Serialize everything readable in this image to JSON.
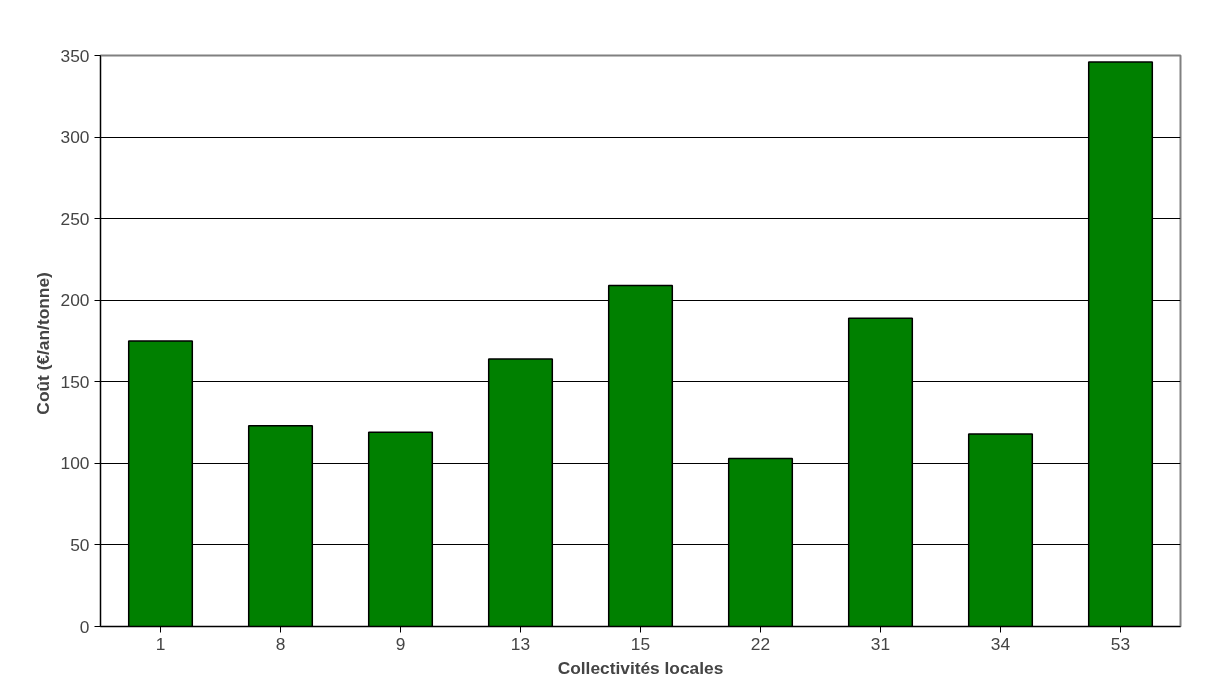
{
  "chart_data": {
    "type": "bar",
    "xlabel": "Collectivités locales",
    "ylabel": "Coût  (€/an/tonne)",
    "categories": [
      "1",
      "8",
      "9",
      "13",
      "15",
      "22",
      "31",
      "34",
      "53"
    ],
    "values": [
      175,
      123,
      119,
      164,
      209,
      103,
      189,
      118,
      346
    ],
    "color": "#008000",
    "ylim": [
      0,
      350
    ],
    "yticks": [
      0,
      50,
      100,
      150,
      200,
      250,
      300,
      350
    ],
    "grid": "y"
  }
}
